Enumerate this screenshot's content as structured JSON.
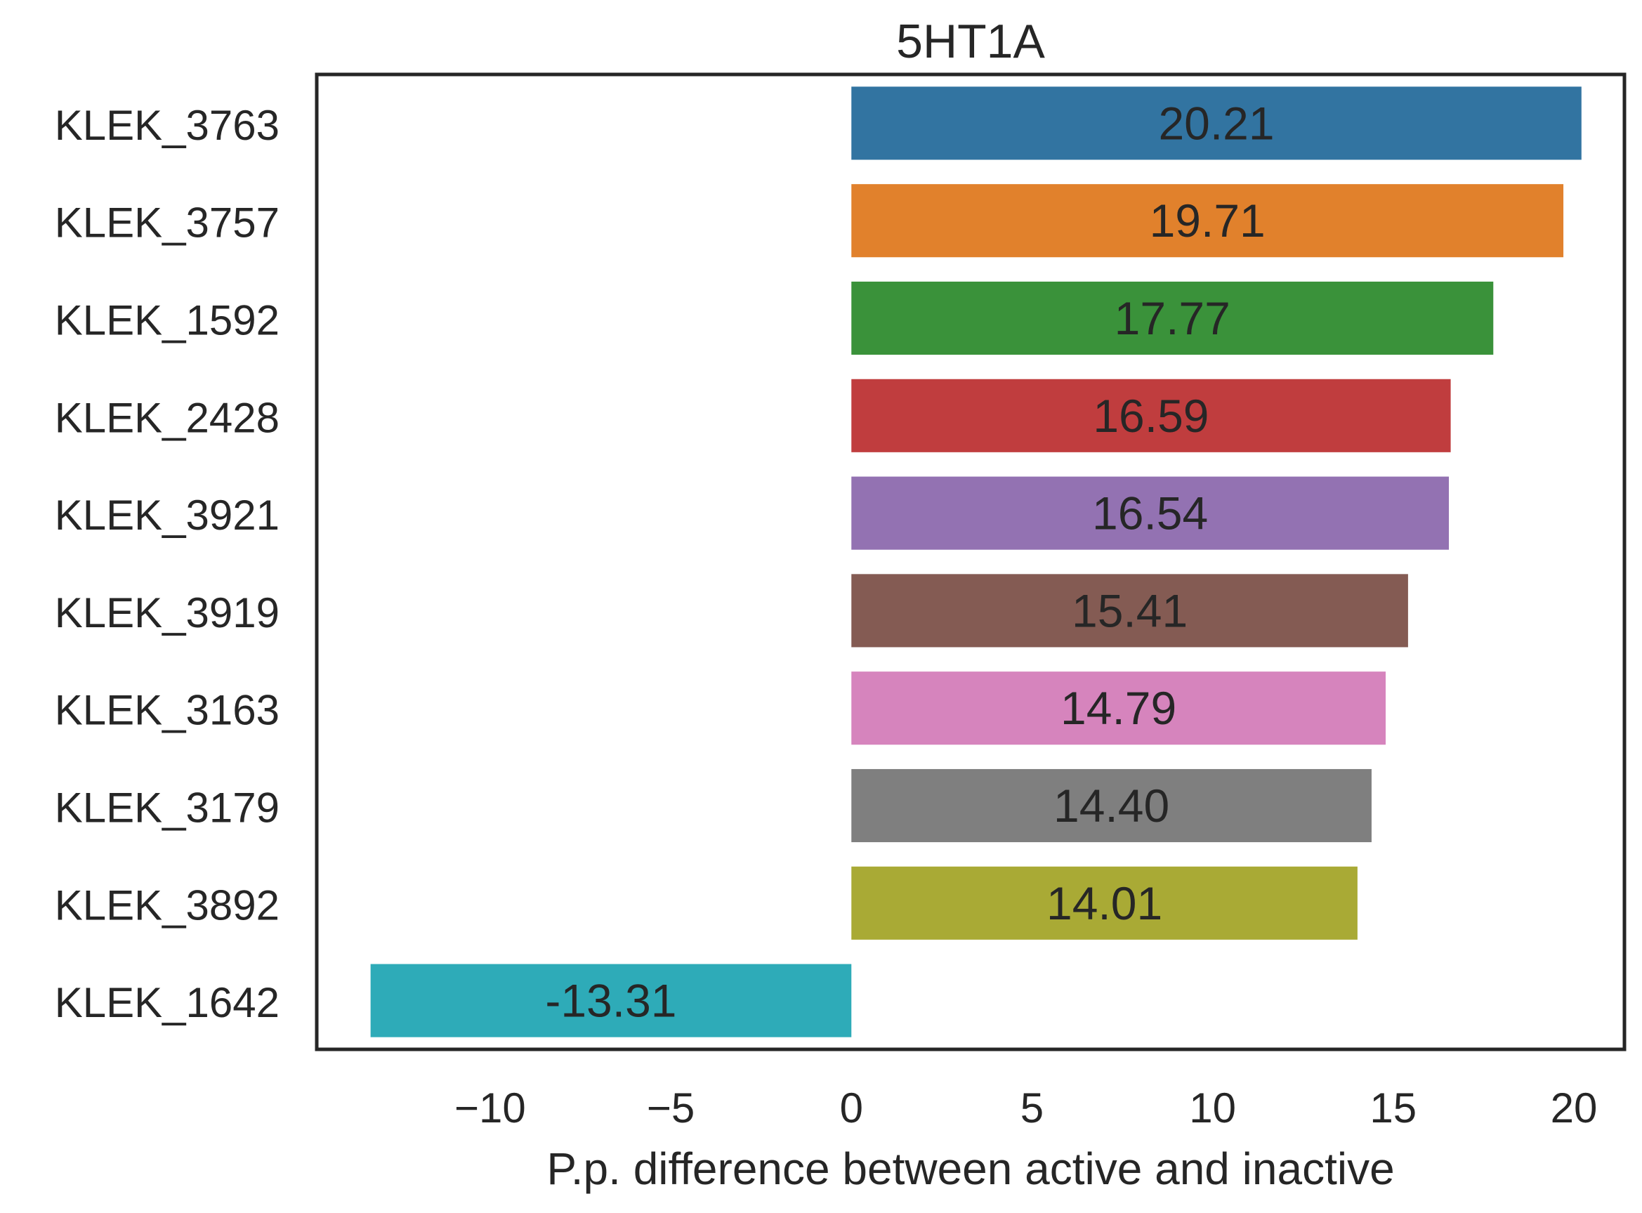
{
  "chart_data": {
    "type": "bar",
    "orientation": "horizontal",
    "title": "5HT1A",
    "xlabel": "P.p. difference between active and inactive",
    "ylabel": "",
    "xlim": [
      -14.8,
      21.4
    ],
    "xticks": [
      -10,
      -5,
      0,
      5,
      10,
      15,
      20
    ],
    "xtick_labels": [
      "−10",
      "−5",
      "0",
      "5",
      "10",
      "15",
      "20"
    ],
    "grid": false,
    "legend": "none",
    "categories": [
      "KLEK_3763",
      "KLEK_3757",
      "KLEK_1592",
      "KLEK_2428",
      "KLEK_3921",
      "KLEK_3919",
      "KLEK_3163",
      "KLEK_3179",
      "KLEK_3892",
      "KLEK_1642"
    ],
    "values": [
      20.21,
      19.71,
      17.77,
      16.59,
      16.54,
      15.41,
      14.79,
      14.4,
      14.01,
      -13.31
    ],
    "value_labels": [
      "20.21",
      "19.71",
      "17.77",
      "16.59",
      "16.54",
      "15.41",
      "14.79",
      "14.40",
      "14.01",
      "-13.31"
    ],
    "colors": [
      "#3274a1",
      "#e1812c",
      "#3a923a",
      "#c03d3e",
      "#9372b2",
      "#845b53",
      "#d684bd",
      "#7f7f7f",
      "#a9aa35",
      "#2eabb8"
    ]
  }
}
